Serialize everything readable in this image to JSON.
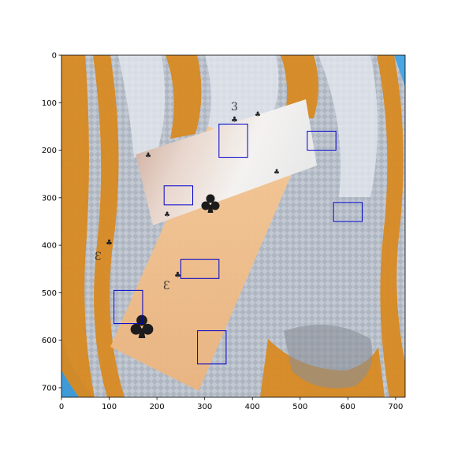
{
  "axes": {
    "xticks": [
      "0",
      "100",
      "200",
      "300",
      "400",
      "500",
      "600",
      "700"
    ],
    "yticks": [
      "0",
      "100",
      "200",
      "300",
      "400",
      "500",
      "600",
      "700"
    ],
    "xlim": [
      0,
      720
    ],
    "ylim": [
      720,
      0
    ]
  },
  "colors": {
    "box_stroke": "#0000cc",
    "card_warm": "#f3c08c",
    "card_white": "#f2f2f2",
    "club_ink": "#1c1c1c",
    "fish_orange": "#d98a1e",
    "fish_silver": "#c7ccd4",
    "water_blue": "#3a93d6"
  },
  "icons": [
    "club-suit-icon"
  ],
  "detection_boxes": [
    {
      "id": "box-1",
      "x0": 330,
      "y0": 145,
      "x1": 390,
      "y1": 215
    },
    {
      "id": "box-2",
      "x0": 515,
      "y0": 160,
      "x1": 575,
      "y1": 200
    },
    {
      "id": "box-3",
      "x0": 215,
      "y0": 275,
      "x1": 275,
      "y1": 315
    },
    {
      "id": "box-4",
      "x0": 570,
      "y0": 310,
      "x1": 630,
      "y1": 350
    },
    {
      "id": "box-5",
      "x0": 250,
      "y0": 430,
      "x1": 330,
      "y1": 470
    },
    {
      "id": "box-6",
      "x0": 110,
      "y0": 495,
      "x1": 170,
      "y1": 565
    },
    {
      "id": "box-7",
      "x0": 285,
      "y0": 580,
      "x1": 345,
      "y1": 650
    }
  ]
}
